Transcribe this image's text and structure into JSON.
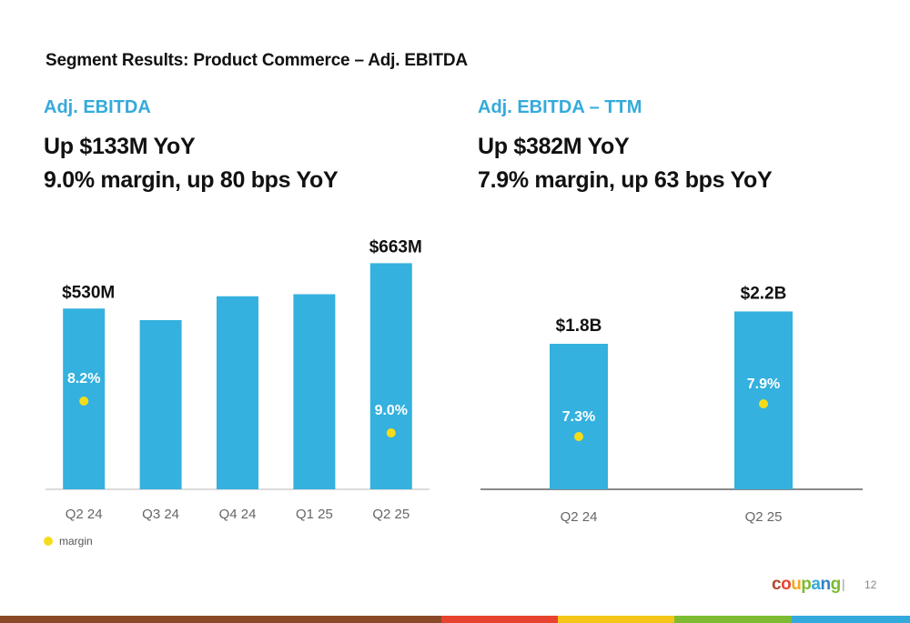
{
  "page_title": "Segment Results: Product Commerce – Adj. EBITDA",
  "left": {
    "label": "Adj. EBITDA",
    "line1": "Up $133M YoY",
    "line2": "9.0% margin, up 80 bps YoY"
  },
  "right": {
    "label": "Adj. EBITDA – TTM",
    "line1": "Up $382M YoY",
    "line2": "7.9% margin, up 63 bps YoY"
  },
  "legend": {
    "margin": "margin"
  },
  "footer": {
    "logo_letters": [
      "c",
      "o",
      "u",
      "p",
      "a",
      "n",
      "g"
    ],
    "separator": "|",
    "page": "12"
  },
  "colors": {
    "bar": "#34b1de",
    "margin_dot": "#f5dc1a",
    "label_blue": "#34aadc",
    "logo": [
      "#b0472b",
      "#e8432e",
      "#f5a623",
      "#7dbb33",
      "#34aadc",
      "#2f84c6",
      "#7dbb33"
    ],
    "bottom_bar": [
      "#8a4a2a",
      "#e8432e",
      "#f5c518",
      "#7dbb33",
      "#34aadc"
    ]
  },
  "chart_data": [
    {
      "type": "bar",
      "categories": [
        "Q2 24",
        "Q3 24",
        "Q4 24",
        "Q1 25",
        "Q2 25"
      ],
      "series": [
        {
          "values": [
            530,
            496,
            566,
            572,
            663
          ],
          "value_labels": [
            "$530M",
            "",
            "",
            "",
            "$663M"
          ]
        },
        {
          "name": "margin",
          "values": [
            8.2,
            null,
            null,
            null,
            9.0
          ],
          "value_labels": [
            "8.2%",
            "",
            "",
            "",
            "9.0%"
          ]
        }
      ],
      "ylim": [
        0,
        800
      ],
      "legend": "bottom-left",
      "grid": false
    },
    {
      "type": "bar",
      "categories": [
        "Q2 24",
        "Q2 25"
      ],
      "series": [
        {
          "values": [
            1.8,
            2.2
          ],
          "value_labels": [
            "$1.8B",
            "$2.2B"
          ]
        },
        {
          "values": [
            7.3,
            7.9
          ],
          "value_labels": [
            "7.3%",
            "7.9%"
          ]
        }
      ],
      "ylim": [
        0,
        2.7
      ],
      "grid": false
    }
  ]
}
